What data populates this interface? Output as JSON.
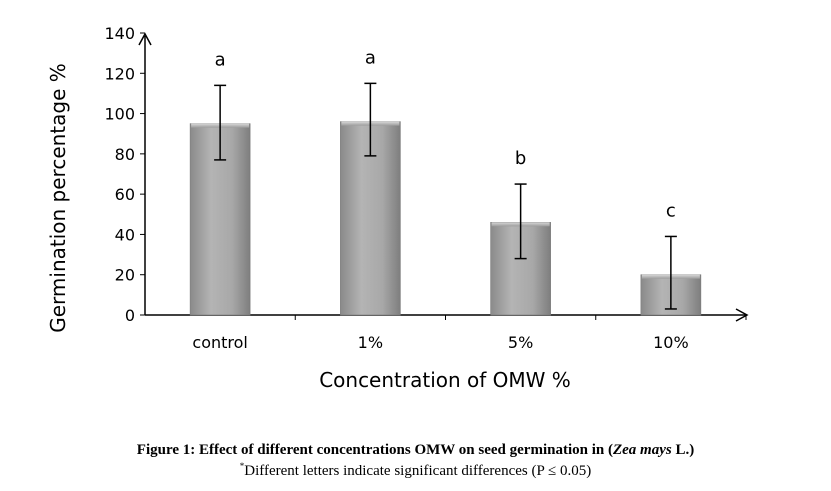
{
  "chart_data": {
    "type": "bar",
    "categories": [
      "control",
      "1%",
      "5%",
      "10%"
    ],
    "values": [
      95,
      96,
      46,
      20
    ],
    "error_bars": [
      {
        "low": 77,
        "high": 114
      },
      {
        "low": 79,
        "high": 115
      },
      {
        "low": 28,
        "high": 65
      },
      {
        "low": 3,
        "high": 39
      }
    ],
    "significance_letters": [
      "a",
      "a",
      "b",
      "c"
    ],
    "xlabel": "Concentration of OMW %",
    "ylabel": "Germination percentage %",
    "ylim": [
      0,
      140
    ],
    "yticks": [
      "0",
      "20",
      "40",
      "60",
      "80",
      "100",
      "120",
      "140"
    ],
    "grid": false,
    "bar_color": "#a6a6a6"
  },
  "caption": {
    "title_prefix": "Figure 1: Effect of different concentrations OMW on seed germination in (",
    "title_species": "Zea mays",
    "title_suffix": " L.)",
    "note_marker": "*",
    "note_text": "Different letters indicate significant differences (P ≤ 0.05)"
  }
}
